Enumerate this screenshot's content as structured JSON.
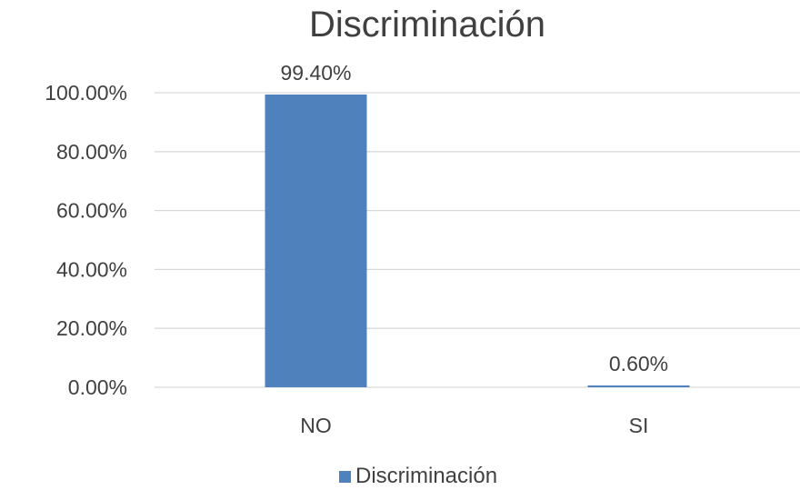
{
  "chart_data": {
    "type": "bar",
    "title": "Discriminación",
    "categories": [
      "NO",
      "SI"
    ],
    "series": [
      {
        "name": "Discriminación",
        "values": [
          99.4,
          0.6
        ],
        "data_labels": [
          "99.40%",
          "0.60%"
        ],
        "color": "#4F81BD"
      }
    ],
    "ylim": [
      0,
      100
    ],
    "yticks": [
      0,
      20,
      40,
      60,
      80,
      100
    ],
    "ytick_labels": [
      "0.00%",
      "20.00%",
      "40.00%",
      "60.00%",
      "80.00%",
      "100.00%"
    ],
    "grid": true,
    "gridline_color": "#D9D9D9",
    "legend_position": "bottom"
  }
}
